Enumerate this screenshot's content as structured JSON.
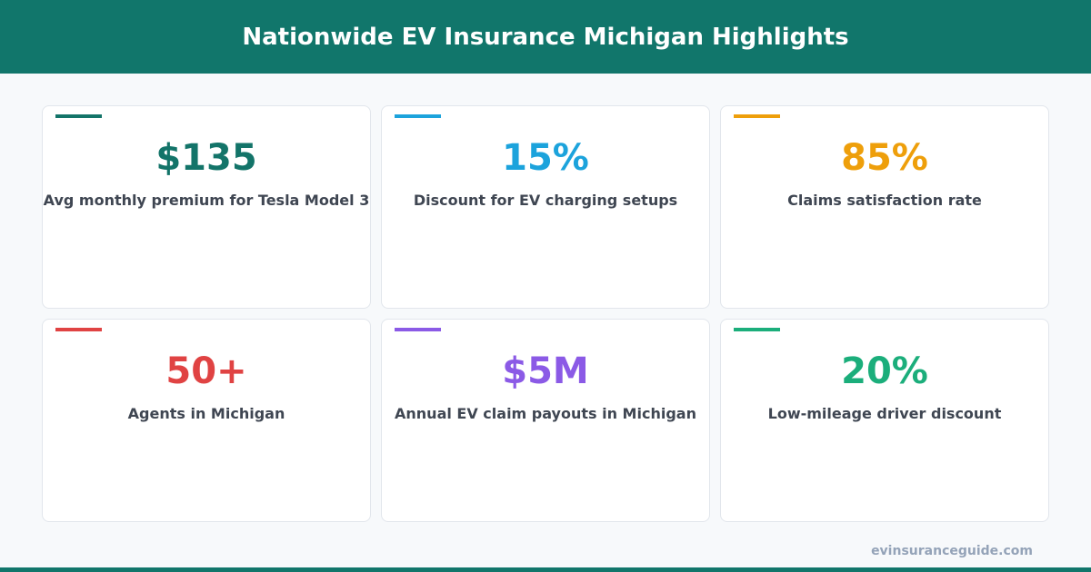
{
  "header": {
    "title": "Nationwide EV Insurance Michigan Highlights"
  },
  "cards": [
    {
      "value": "$135",
      "label": "Avg monthly premium for Tesla Model 3",
      "color": "#137469"
    },
    {
      "value": "15%",
      "label": "Discount for EV charging setups",
      "color": "#1ca3dc"
    },
    {
      "value": "85%",
      "label": "Claims satisfaction rate",
      "color": "#ee9f0b"
    },
    {
      "value": "50+",
      "label": "Agents in Michigan",
      "color": "#e04343"
    },
    {
      "value": "$5M",
      "label": "Annual EV claim payouts in Michigan",
      "color": "#8b5ae6"
    },
    {
      "value": "20%",
      "label": "Low-mileage driver discount",
      "color": "#1bae7b"
    }
  ],
  "footer": {
    "site": "evinsuranceguide.com"
  }
}
